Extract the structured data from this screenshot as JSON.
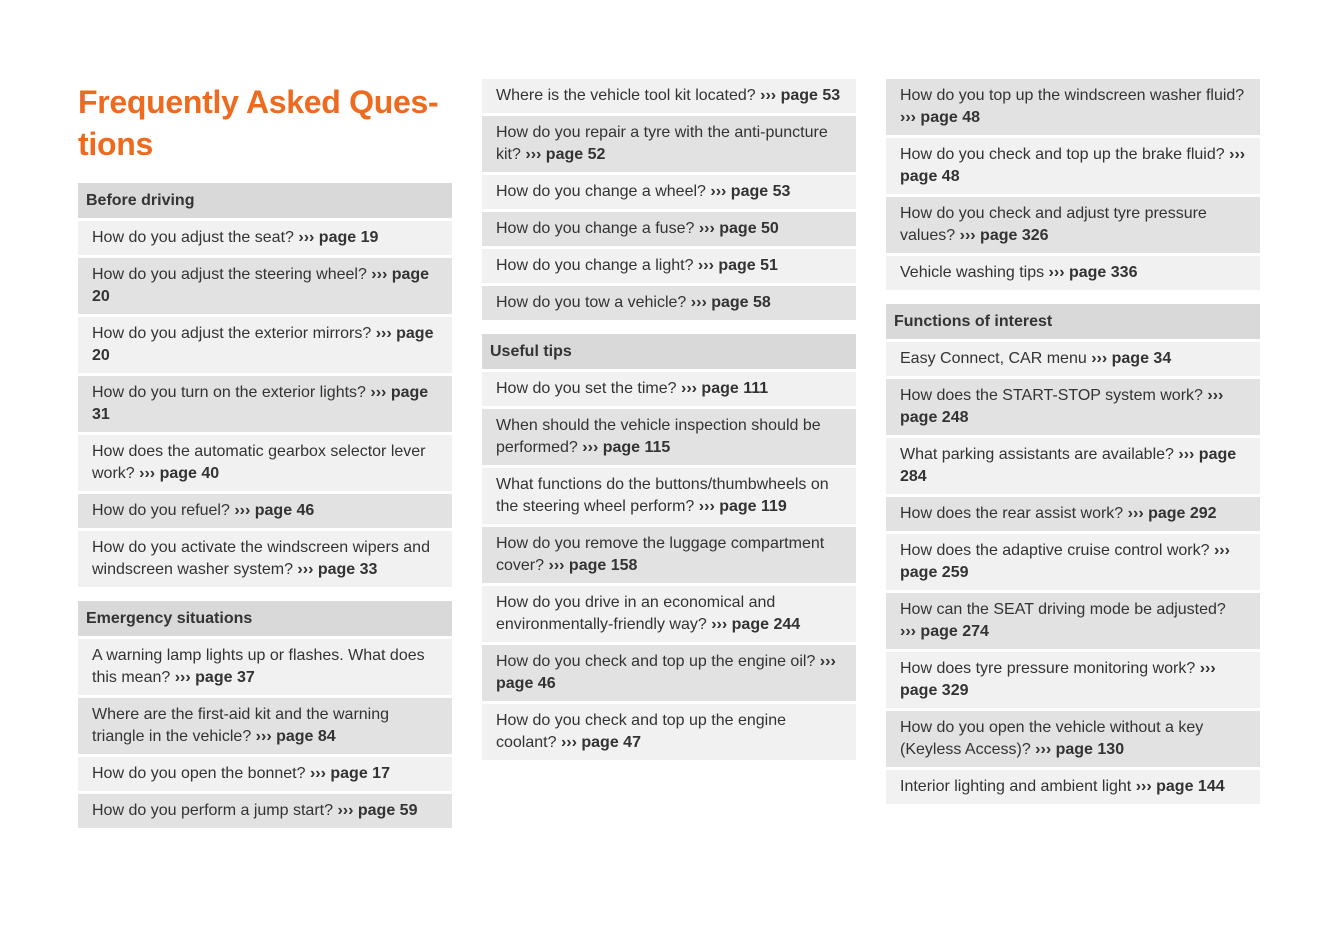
{
  "title": "Frequently Asked Ques-\ntions",
  "columns": [
    [
      {
        "heading": "Before driving",
        "items": [
          {
            "q": "How do you adjust the seat?",
            "ref": "››› page 19"
          },
          {
            "q": "How do you adjust the steering wheel?",
            "ref": "››› page 20"
          },
          {
            "q": "How do you adjust the exterior mirrors?",
            "ref": "››› page 20"
          },
          {
            "q": "How do you turn on the exterior lights?",
            "ref": "››› page 31"
          },
          {
            "q": "How does the automatic gearbox selector lever work?",
            "ref": "››› page 40"
          },
          {
            "q": "How do you refuel?",
            "ref": "››› page 46"
          },
          {
            "q": "How do you activate the windscreen wipers and windscreen washer system?",
            "ref": "››› page 33"
          }
        ]
      },
      {
        "heading": "Emergency situations",
        "items": [
          {
            "q": "A warning lamp lights up or flashes. What does this mean?",
            "ref": "››› page 37"
          },
          {
            "q": "Where are the first-aid kit and the warning triangle in the vehicle?",
            "ref": "››› page 84"
          },
          {
            "q": "How do you open the bonnet?",
            "ref": "››› page 17"
          },
          {
            "q": "How do you perform a jump start?",
            "ref": "››› page 59"
          }
        ]
      }
    ],
    [
      {
        "items": [
          {
            "q": "Where is the vehicle tool kit located?",
            "ref": "››› page 53"
          },
          {
            "q": "How do you repair a tyre with the anti-puncture kit?",
            "ref": "››› page 52"
          },
          {
            "q": "How do you change a wheel?",
            "ref": "››› page 53"
          },
          {
            "q": "How do you change a fuse?",
            "ref": "››› page 50"
          },
          {
            "q": "How do you change a light?",
            "ref": "››› page 51"
          },
          {
            "q": "How do you tow a vehicle?",
            "ref": "››› page 58"
          }
        ]
      },
      {
        "heading": "Useful tips",
        "items": [
          {
            "q": "How do you set the time?",
            "ref": "››› page 111"
          },
          {
            "q": "When should the vehicle inspection should be performed?",
            "ref": "››› page 115"
          },
          {
            "q": "What functions do the buttons/thumbwheels on the steering wheel perform?",
            "ref": "››› page 119"
          },
          {
            "q": "How do you remove the luggage compartment cover?",
            "ref": "››› page 158"
          },
          {
            "q": "How do you drive in an economical and environmentally-friendly way?",
            "ref": "››› page 244"
          },
          {
            "q": "How do you check and top up the engine oil?",
            "ref": "››› page 46"
          },
          {
            "q": "How do you check and top up the engine coolant?",
            "ref": "››› page 47"
          }
        ]
      }
    ],
    [
      {
        "items": [
          {
            "q": "How do you top up the windscreen washer fluid?",
            "ref": "››› page 48"
          },
          {
            "q": "How do you check and top up the brake fluid?",
            "ref": "››› page 48"
          },
          {
            "q": "How do you check and adjust tyre pressure values?",
            "ref": "››› page 326"
          },
          {
            "q": "Vehicle washing tips",
            "ref": "››› page 336"
          }
        ]
      },
      {
        "heading": "Functions of interest",
        "items": [
          {
            "q": "Easy Connect, CAR menu",
            "ref": "››› page 34"
          },
          {
            "q": "How does the START-STOP system work?",
            "ref": "››› page 248"
          },
          {
            "q": "What parking assistants are available?",
            "ref": "››› page 284"
          },
          {
            "q": "How does the rear assist work?",
            "ref": "››› page 292"
          },
          {
            "q": "How does the adaptive cruise control work?",
            "ref": "››› page 259"
          },
          {
            "q": "How can the SEAT driving mode be adjusted?",
            "ref": "››› page 274"
          },
          {
            "q": "How does tyre pressure monitoring work?",
            "ref": "››› page 329"
          },
          {
            "q": "How do you open the vehicle without a key (Keyless Access)?",
            "ref": "››› page 130"
          },
          {
            "q": "Interior lighting and ambient light",
            "ref": "››› page 144"
          }
        ]
      }
    ]
  ]
}
